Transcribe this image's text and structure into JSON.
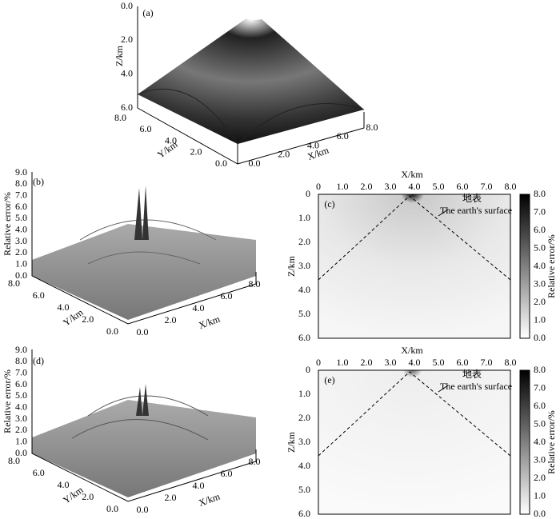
{
  "panels": [
    {
      "label": "(a)",
      "z_label": "Z/km",
      "z_ticks": [
        "0.0",
        "2.0",
        "4.0",
        "6.0"
      ],
      "y_label": "Y/km",
      "y_ticks": [
        "0.0",
        "2.0",
        "4.0",
        "6.0",
        "8.0"
      ],
      "x_label": "X/km",
      "x_ticks": [
        "0.0",
        "2.0",
        "4.0",
        "6.0",
        "8.0"
      ]
    },
    {
      "label": "(b)",
      "z_label": "Relative error/%",
      "z_ticks": [
        "0.0",
        "1.0",
        "2.0",
        "3.0",
        "4.0",
        "5.0",
        "6.0",
        "7.0",
        "8.0",
        "9.0"
      ],
      "y_label": "Y/km",
      "y_ticks": [
        "0.0",
        "2.0",
        "4.0",
        "6.0",
        "8.0"
      ],
      "x_label": "X/km",
      "x_ticks": [
        "0.0",
        "2.0",
        "4.0",
        "6.0",
        "8.0"
      ]
    },
    {
      "label": "(c)",
      "x_label": "X/km",
      "x_ticks": [
        "0",
        "1.0",
        "2.0",
        "3.0",
        "4.0",
        "5.0",
        "6.0",
        "7.0",
        "8.0"
      ],
      "z_label": "Z/km",
      "z_ticks": [
        "0",
        "1.0",
        "2.0",
        "3.0",
        "4.0",
        "5.0",
        "6.0"
      ],
      "colorbar_label": "Relative error/%",
      "colorbar_ticks": [
        "0.0",
        "1.0",
        "2.0",
        "3.0",
        "4.0",
        "5.0",
        "6.0",
        "7.0",
        "8.0"
      ],
      "annotation_cn": "地表",
      "annotation_en": "The earth's surface"
    },
    {
      "label": "(d)",
      "z_label": "Relative error/%",
      "z_ticks": [
        "0.0",
        "1.0",
        "2.0",
        "3.0",
        "4.0",
        "5.0",
        "6.0",
        "7.0",
        "8.0",
        "9.0"
      ],
      "y_label": "Y/km",
      "y_ticks": [
        "0.0",
        "2.0",
        "4.0",
        "6.0",
        "8.0"
      ],
      "x_label": "X/km",
      "x_ticks": [
        "0.0",
        "2.0",
        "4.0",
        "6.0",
        "8.0"
      ]
    },
    {
      "label": "(e)",
      "x_label": "X/km",
      "x_ticks": [
        "0",
        "1.0",
        "2.0",
        "3.0",
        "4.0",
        "5.0",
        "6.0",
        "7.0",
        "8.0"
      ],
      "z_label": "Z/km",
      "z_ticks": [
        "0",
        "1.0",
        "2.0",
        "3.0",
        "4.0",
        "5.0",
        "6.0"
      ],
      "colorbar_label": "Relative error/%",
      "colorbar_ticks": [
        "0.0",
        "1.0",
        "2.0",
        "3.0",
        "4.0",
        "5.0",
        "6.0",
        "7.0",
        "8.0"
      ],
      "annotation_cn": "地表",
      "annotation_en": "The earth's surface"
    }
  ]
}
